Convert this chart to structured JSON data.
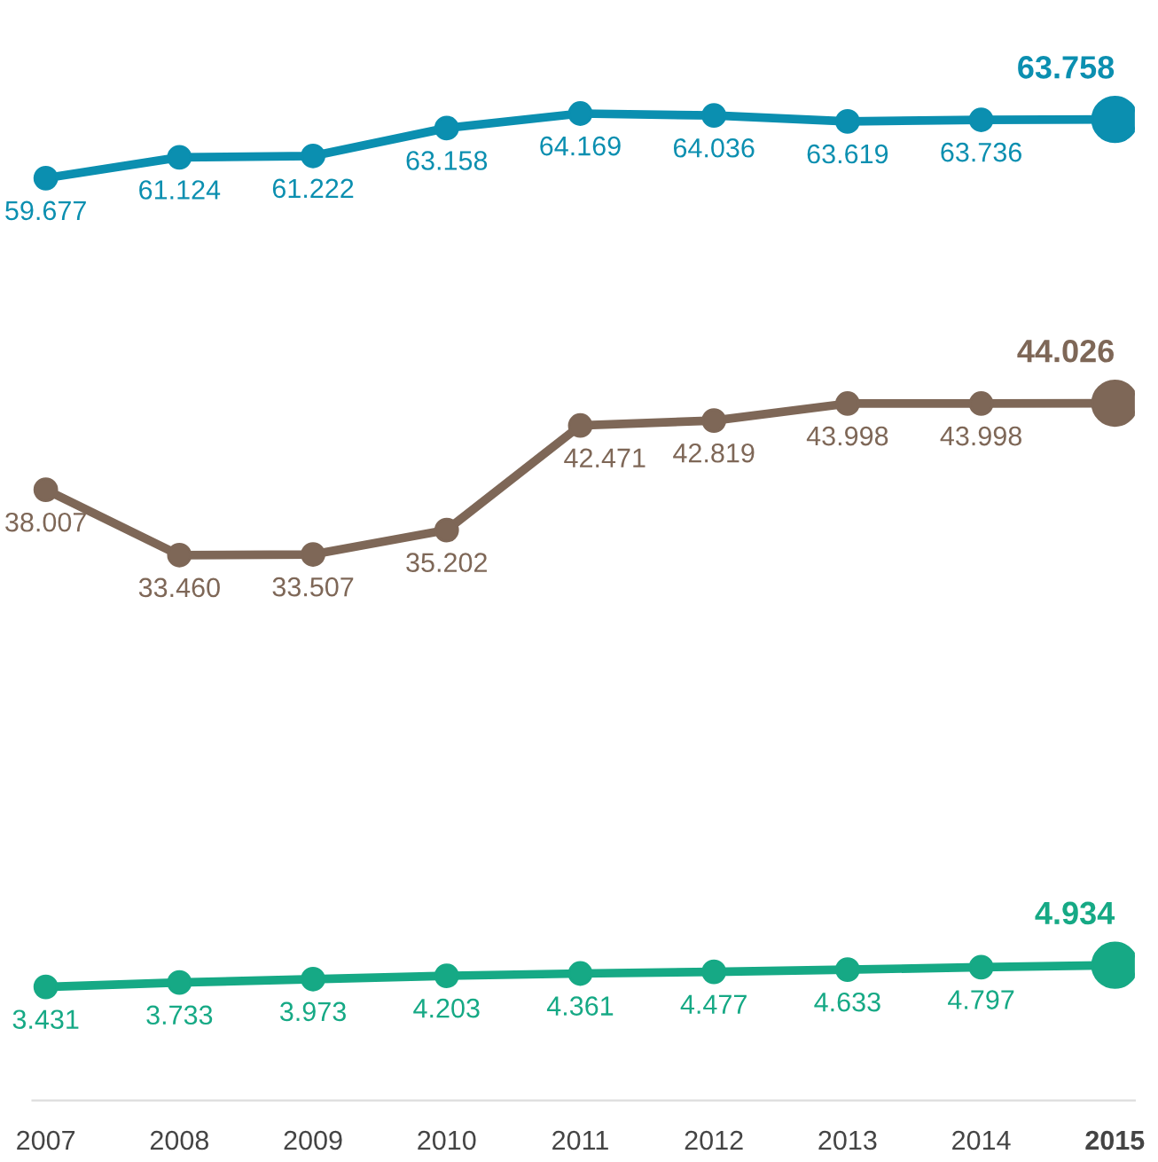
{
  "chart_data": {
    "type": "line",
    "categories": [
      "2007",
      "2008",
      "2009",
      "2010",
      "2011",
      "2012",
      "2013",
      "2014",
      "2015"
    ],
    "series": [
      {
        "color": "#0b8fb0",
        "values": [
          59.677,
          61.124,
          61.222,
          63.158,
          64.169,
          64.036,
          63.619,
          63.736,
          63.758
        ],
        "value_labels": [
          "59.677",
          "61.124",
          "61.222",
          "63.158",
          "64.169",
          "64.036",
          "63.619",
          "63.736",
          "63.758"
        ]
      },
      {
        "color": "#7e6757",
        "values": [
          38.007,
          33.46,
          33.507,
          35.202,
          42.471,
          42.819,
          43.998,
          43.998,
          44.026
        ],
        "value_labels": [
          "38.007",
          "33.460",
          "33.507",
          "35.202",
          "42.471",
          "42.819",
          "43.998",
          "43.998",
          "44.026"
        ]
      },
      {
        "color": "#16a985",
        "values": [
          3.431,
          3.733,
          3.973,
          4.203,
          4.361,
          4.477,
          4.633,
          4.797,
          4.934
        ],
        "value_labels": [
          "3.431",
          "3.733",
          "3.973",
          "4.203",
          "4.361",
          "4.477",
          "4.633",
          "4.797",
          "4.934"
        ]
      }
    ],
    "marker": "circle",
    "line_style": "solid",
    "grid": false,
    "legend": false,
    "tick_labels": "x"
  }
}
